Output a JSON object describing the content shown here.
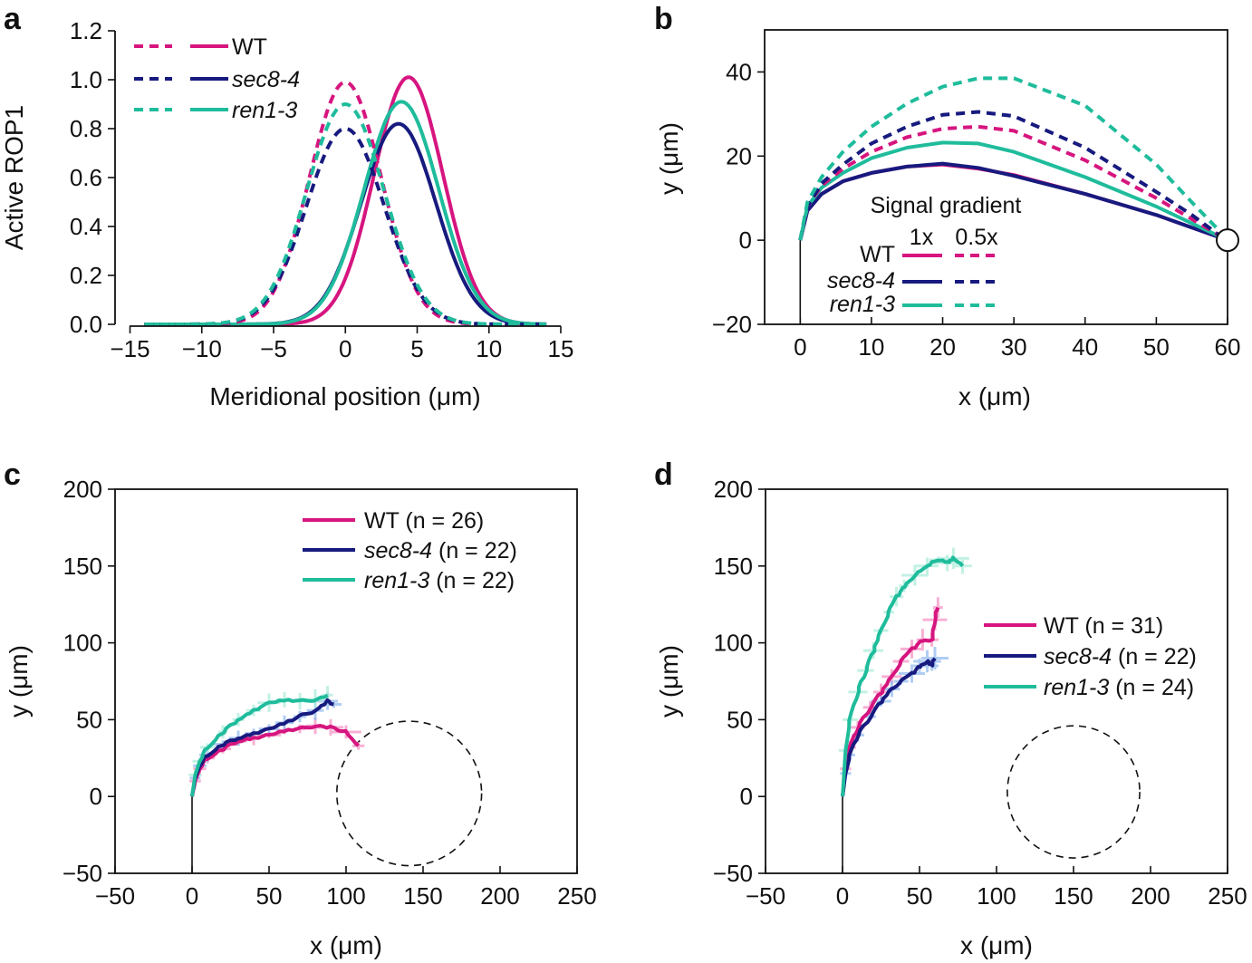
{
  "colors": {
    "WT": "#d6157f",
    "sec8-4": "#171a7e",
    "ren1-3": "#1fbc9c",
    "WT_band": "#f48fc2",
    "sec8_band": "#8fb8ee",
    "ren1_band": "#a9ecd9"
  },
  "chart_data": [
    {
      "panel": "a",
      "type": "line",
      "xlabel": "Meridional position (μm)",
      "ylabel": "Active ROP1",
      "xlim": [
        -15,
        15
      ],
      "ylim": [
        0,
        1.2
      ],
      "xticks": [
        "−15",
        "−10",
        "−5",
        "0",
        "5",
        "10",
        "15"
      ],
      "yticks": [
        "0.0",
        "0.2",
        "0.4",
        "0.6",
        "0.8",
        "1.0",
        "1.2"
      ],
      "legend": [
        "WT",
        "sec8-4",
        "ren1-3"
      ],
      "legend_position": "top-left",
      "series": [
        {
          "name": "WT",
          "style": "solid",
          "mu": 4.4,
          "amplitude": 1.01,
          "sigma": 2.4
        },
        {
          "name": "sec8-4",
          "style": "solid",
          "mu": 3.7,
          "amplitude": 0.82,
          "sigma": 2.6
        },
        {
          "name": "ren1-3",
          "style": "solid",
          "mu": 3.9,
          "amplitude": 0.91,
          "sigma": 2.6
        },
        {
          "name": "WT",
          "style": "dashed",
          "mu": 0,
          "amplitude": 0.99,
          "sigma": 2.5
        },
        {
          "name": "sec8-4",
          "style": "dashed",
          "mu": 0,
          "amplitude": 0.8,
          "sigma": 2.7
        },
        {
          "name": "ren1-3",
          "style": "dashed",
          "mu": 0,
          "amplitude": 0.9,
          "sigma": 2.7
        }
      ]
    },
    {
      "panel": "b",
      "type": "line",
      "xlabel": "x (μm)",
      "ylabel": "y (μm)",
      "xlim": [
        -5,
        60
      ],
      "ylim": [
        -20,
        50
      ],
      "xticks": [
        "0",
        "10",
        "20",
        "30",
        "40",
        "50",
        "60"
      ],
      "yticks": [
        "−20",
        "0",
        "20",
        "40"
      ],
      "legend_title": "Signal gradient",
      "legend_columns": [
        "1x",
        "0.5x"
      ],
      "legend": [
        "WT",
        "sec8-4",
        "ren1-3"
      ],
      "target": {
        "x": 60,
        "y": 0
      },
      "series": [
        {
          "name": "WT",
          "style": "solid",
          "points": [
            [
              0,
              0
            ],
            [
              1,
              7
            ],
            [
              3,
              11
            ],
            [
              6,
              14
            ],
            [
              10,
              16
            ],
            [
              15,
              17.5
            ],
            [
              20,
              18
            ],
            [
              25,
              17
            ],
            [
              30,
              15.5
            ],
            [
              40,
              11
            ],
            [
              50,
              6
            ],
            [
              55,
              3
            ],
            [
              60,
              0
            ]
          ]
        },
        {
          "name": "sec8-4",
          "style": "solid",
          "points": [
            [
              0,
              0
            ],
            [
              1,
              7
            ],
            [
              3,
              11
            ],
            [
              6,
              14
            ],
            [
              10,
              16
            ],
            [
              15,
              17.5
            ],
            [
              20,
              18.2
            ],
            [
              25,
              17.2
            ],
            [
              30,
              15.3
            ],
            [
              40,
              11
            ],
            [
              50,
              6
            ],
            [
              55,
              3
            ],
            [
              60,
              0
            ]
          ]
        },
        {
          "name": "ren1-3",
          "style": "solid",
          "points": [
            [
              0,
              0
            ],
            [
              1,
              8
            ],
            [
              3,
              12.5
            ],
            [
              6,
              16
            ],
            [
              10,
              19.5
            ],
            [
              15,
              22
            ],
            [
              20,
              23.2
            ],
            [
              25,
              23
            ],
            [
              30,
              21
            ],
            [
              40,
              15
            ],
            [
              50,
              8
            ],
            [
              55,
              4
            ],
            [
              60,
              0
            ]
          ]
        },
        {
          "name": "WT",
          "style": "dashed",
          "points": [
            [
              0,
              0
            ],
            [
              1,
              8
            ],
            [
              3,
              13
            ],
            [
              6,
              17
            ],
            [
              10,
              21
            ],
            [
              15,
              24.5
            ],
            [
              20,
              26.5
            ],
            [
              25,
              27
            ],
            [
              30,
              26
            ],
            [
              40,
              19
            ],
            [
              50,
              10
            ],
            [
              55,
              5
            ],
            [
              59,
              1
            ]
          ]
        },
        {
          "name": "sec8-4",
          "style": "dashed",
          "points": [
            [
              0,
              0
            ],
            [
              1,
              8
            ],
            [
              3,
              13.5
            ],
            [
              6,
              18
            ],
            [
              10,
              23
            ],
            [
              15,
              27
            ],
            [
              20,
              29.8
            ],
            [
              25,
              30.5
            ],
            [
              30,
              29.5
            ],
            [
              40,
              22
            ],
            [
              50,
              11.5
            ],
            [
              55,
              6
            ],
            [
              59,
              1
            ]
          ]
        },
        {
          "name": "ren1-3",
          "style": "dashed",
          "points": [
            [
              0,
              0
            ],
            [
              1,
              9
            ],
            [
              3,
              15
            ],
            [
              6,
              21
            ],
            [
              10,
              27
            ],
            [
              15,
              32.5
            ],
            [
              20,
              36.5
            ],
            [
              25,
              38.5
            ],
            [
              30,
              38.5
            ],
            [
              40,
              32
            ],
            [
              50,
              18
            ],
            [
              55,
              9
            ],
            [
              59,
              2
            ]
          ]
        }
      ]
    },
    {
      "panel": "c",
      "type": "line",
      "xlabel": "x (μm)",
      "ylabel": "y (μm)",
      "xlim": [
        -50,
        250
      ],
      "ylim": [
        -50,
        200
      ],
      "xticks": [
        "−50",
        "0",
        "50",
        "100",
        "150",
        "200",
        "250"
      ],
      "yticks": [
        "−50",
        "0",
        "50",
        "100",
        "150",
        "200"
      ],
      "legend": [
        {
          "name": "WT",
          "n_text": "(n = 26)"
        },
        {
          "name": "sec8-4",
          "n_text": "(n = 22)"
        },
        {
          "name": "ren1-3",
          "n_text": "(n = 22)"
        }
      ],
      "target_circle": {
        "cx": 141,
        "cy": 2,
        "r": 47
      },
      "series": [
        {
          "name": "WT",
          "points": [
            [
              0,
              0
            ],
            [
              2,
              10
            ],
            [
              5,
              18
            ],
            [
              10,
              25
            ],
            [
              20,
              31
            ],
            [
              30,
              36
            ],
            [
              40,
              38
            ],
            [
              50,
              40
            ],
            [
              60,
              43
            ],
            [
              70,
              44
            ],
            [
              80,
              46
            ],
            [
              90,
              45
            ],
            [
              100,
              42
            ],
            [
              108,
              33
            ]
          ]
        },
        {
          "name": "sec8-4",
          "points": [
            [
              0,
              0
            ],
            [
              2,
              12
            ],
            [
              5,
              20
            ],
            [
              10,
              27
            ],
            [
              20,
              34
            ],
            [
              30,
              38
            ],
            [
              40,
              41
            ],
            [
              50,
              44
            ],
            [
              60,
              48
            ],
            [
              70,
              52
            ],
            [
              80,
              56
            ],
            [
              88,
              62
            ],
            [
              92,
              60
            ]
          ]
        },
        {
          "name": "ren1-3",
          "points": [
            [
              0,
              0
            ],
            [
              2,
              14
            ],
            [
              5,
              23
            ],
            [
              10,
              32
            ],
            [
              20,
              42
            ],
            [
              30,
              50
            ],
            [
              40,
              56
            ],
            [
              50,
              61
            ],
            [
              60,
              63
            ],
            [
              70,
              62
            ],
            [
              80,
              63
            ],
            [
              88,
              66
            ]
          ]
        }
      ]
    },
    {
      "panel": "d",
      "type": "line",
      "xlabel": "x (μm)",
      "ylabel": "y (μm)",
      "xlim": [
        -50,
        250
      ],
      "ylim": [
        -50,
        200
      ],
      "xticks": [
        "−50",
        "0",
        "50",
        "100",
        "150",
        "200",
        "250"
      ],
      "yticks": [
        "−50",
        "0",
        "50",
        "100",
        "150",
        "200"
      ],
      "legend": [
        {
          "name": "WT",
          "n_text": "(n = 31)"
        },
        {
          "name": "sec8-4",
          "n_text": "(n = 22)"
        },
        {
          "name": "ren1-3",
          "n_text": "(n = 24)"
        }
      ],
      "target_circle": {
        "cx": 150,
        "cy": 3,
        "r": 43
      },
      "series": [
        {
          "name": "WT",
          "points": [
            [
              0,
              0
            ],
            [
              2,
              18
            ],
            [
              5,
              32
            ],
            [
              10,
              45
            ],
            [
              18,
              58
            ],
            [
              25,
              68
            ],
            [
              32,
              78
            ],
            [
              38,
              88
            ],
            [
              45,
              96
            ],
            [
              52,
              102
            ],
            [
              58,
              102
            ],
            [
              60,
              115
            ],
            [
              62,
              123
            ]
          ]
        },
        {
          "name": "sec8-4",
          "points": [
            [
              0,
              0
            ],
            [
              2,
              15
            ],
            [
              5,
              27
            ],
            [
              10,
              40
            ],
            [
              18,
              52
            ],
            [
              25,
              62
            ],
            [
              32,
              70
            ],
            [
              38,
              75
            ],
            [
              45,
              80
            ],
            [
              50,
              85
            ],
            [
              55,
              88
            ],
            [
              58,
              85
            ],
            [
              60,
              90
            ]
          ]
        },
        {
          "name": "ren1-3",
          "points": [
            [
              0,
              0
            ],
            [
              2,
              30
            ],
            [
              5,
              50
            ],
            [
              10,
              68
            ],
            [
              15,
              82
            ],
            [
              20,
              95
            ],
            [
              25,
              108
            ],
            [
              30,
              120
            ],
            [
              35,
              130
            ],
            [
              40,
              137
            ],
            [
              47,
              144
            ],
            [
              55,
              150
            ],
            [
              62,
              154
            ],
            [
              68,
              152
            ],
            [
              72,
              155
            ],
            [
              78,
              150
            ]
          ]
        }
      ]
    }
  ]
}
